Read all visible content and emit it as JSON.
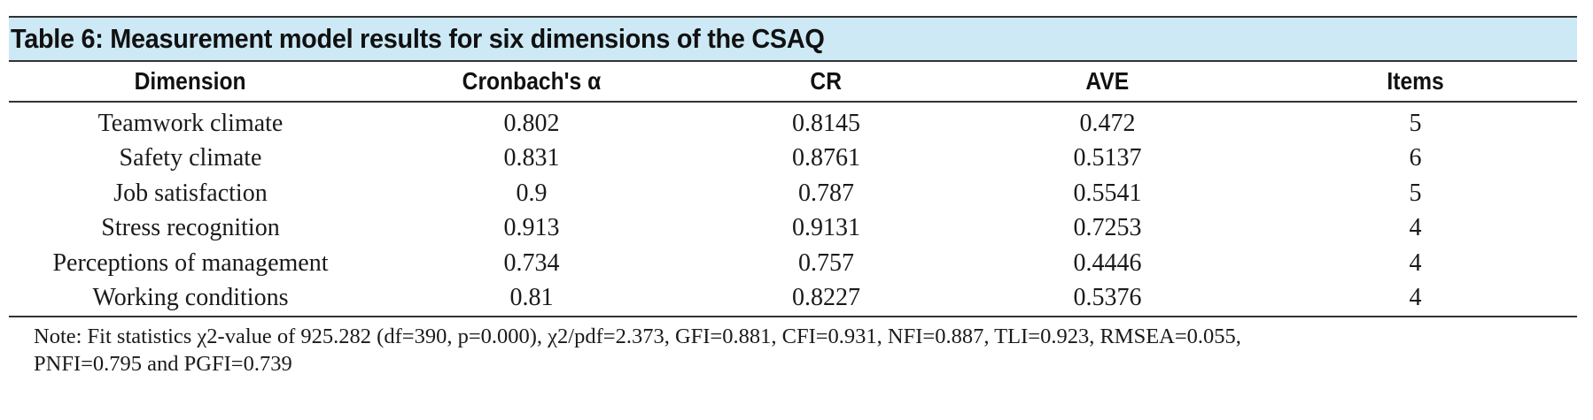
{
  "title": "Table 6: Measurement model results for six dimensions of the CSAQ",
  "columns": [
    "Dimension",
    "Cronbach's α",
    "CR",
    "AVE",
    "Items"
  ],
  "rows": [
    [
      "Teamwork climate",
      "0.802",
      "0.8145",
      "0.472",
      "5"
    ],
    [
      "Safety climate",
      "0.831",
      "0.8761",
      "0.5137",
      "6"
    ],
    [
      "Job satisfaction",
      "0.9",
      "0.787",
      "0.5541",
      "5"
    ],
    [
      "Stress recognition",
      "0.913",
      "0.9131",
      "0.7253",
      "4"
    ],
    [
      "Perceptions of management",
      "0.734",
      "0.757",
      "0.4446",
      "4"
    ],
    [
      "Working conditions",
      "0.81",
      "0.8227",
      "0.5376",
      "4"
    ]
  ],
  "note": "Note: Fit statistics χ2-value of 925.282 (df=390, p=0.000), χ2/pdf=2.373, GFI=0.881, CFI=0.931, NFI=0.887, TLI=0.923, RMSEA=0.055,\nPNFI=0.795 and PGFI=0.739",
  "colors": {
    "title_background": "#cde9f6",
    "rule": "#333333"
  }
}
